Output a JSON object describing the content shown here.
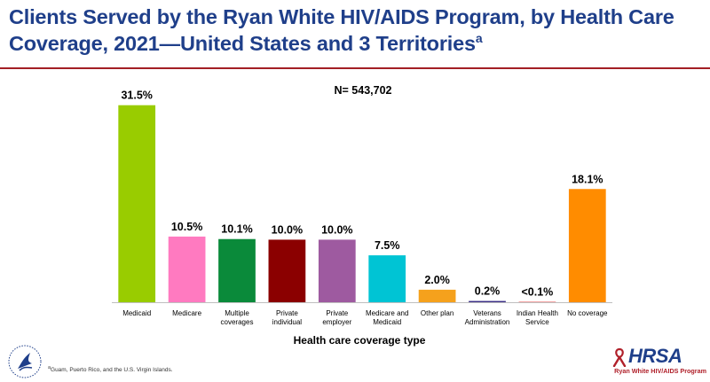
{
  "title_line1": "Clients Served by the Ryan White HIV/AIDS Program, by Health Care",
  "title_line2": "Coverage, 2021—United States and 3 Territories",
  "title_sup": "a",
  "footnote_marker": "a",
  "footnote": "Guam, Puerto Rico, and the U.S. Virgin Islands.",
  "logo": {
    "seal_icon": "hhs-eagle-seal-icon",
    "brand": "HRSA",
    "brand_sub": "Ryan White HIV/AIDS Program",
    "ribbon_icon": "red-ribbon-icon",
    "brand_color": "#1f3f8a",
    "ribbon_color": "#b0202a"
  },
  "chart_data": {
    "type": "bar",
    "title": "",
    "annotation": "N= 543,702",
    "xlabel": "Health care coverage type",
    "ylabel": "",
    "ylim": [
      0,
      35
    ],
    "grid": false,
    "legend": "none",
    "categories": [
      [
        "Medicaid"
      ],
      [
        "Medicare"
      ],
      [
        "Multiple",
        "coverages"
      ],
      [
        "Private",
        "individual"
      ],
      [
        "Private",
        "employer"
      ],
      [
        "Medicare and",
        "Medicaid"
      ],
      [
        "Other plan"
      ],
      [
        "Veterans",
        "Administration"
      ],
      [
        "Indian Health",
        "Service"
      ],
      [
        "No coverage"
      ]
    ],
    "values": [
      31.5,
      10.5,
      10.1,
      10.0,
      10.0,
      7.5,
      2.0,
      0.2,
      0.05,
      18.1
    ],
    "value_labels": [
      "31.5%",
      "10.5%",
      "10.1%",
      "10.0%",
      "10.0%",
      "7.5%",
      "2.0%",
      "0.2%",
      "<0.1%",
      "18.1%"
    ],
    "colors": [
      "#99cc00",
      "#ff7ac0",
      "#0a8a3a",
      "#8b0000",
      "#9e5aa0",
      "#00c4d4",
      "#f5a11c",
      "#3b2f86",
      "#e00000",
      "#ff8c00"
    ]
  }
}
